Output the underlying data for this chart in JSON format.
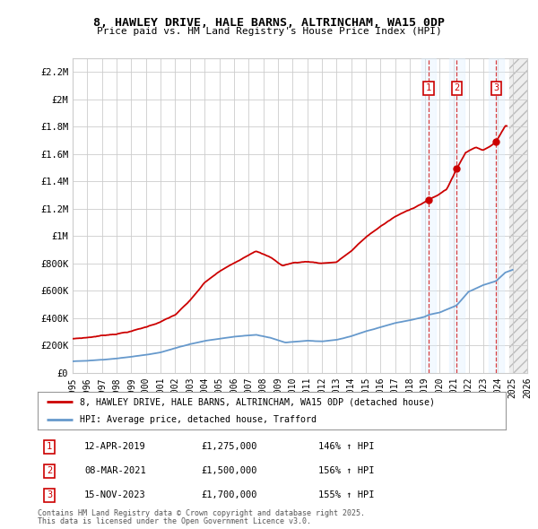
{
  "title": "8, HAWLEY DRIVE, HALE BARNS, ALTRINCHAM, WA15 0DP",
  "subtitle": "Price paid vs. HM Land Registry's House Price Index (HPI)",
  "xlim": [
    1995.0,
    2026.0
  ],
  "ylim": [
    0,
    2300000
  ],
  "yticks": [
    0,
    200000,
    400000,
    600000,
    800000,
    1000000,
    1200000,
    1400000,
    1600000,
    1800000,
    2000000,
    2200000
  ],
  "ytick_labels": [
    "£0",
    "£200K",
    "£400K",
    "£600K",
    "£800K",
    "£1M",
    "£1.2M",
    "£1.4M",
    "£1.6M",
    "£1.8M",
    "£2M",
    "£2.2M"
  ],
  "xticks": [
    1995,
    1996,
    1997,
    1998,
    1999,
    2000,
    2001,
    2002,
    2003,
    2004,
    2005,
    2006,
    2007,
    2008,
    2009,
    2010,
    2011,
    2012,
    2013,
    2014,
    2015,
    2016,
    2017,
    2018,
    2019,
    2020,
    2021,
    2022,
    2023,
    2024,
    2025,
    2026
  ],
  "transactions": [
    {
      "num": 1,
      "date": "12-APR-2019",
      "year": 2019.28,
      "price": 1275000,
      "pct": "146%",
      "dir": "↑"
    },
    {
      "num": 2,
      "date": "08-MAR-2021",
      "year": 2021.19,
      "price": 1500000,
      "pct": "156%",
      "dir": "↑"
    },
    {
      "num": 3,
      "date": "15-NOV-2023",
      "year": 2023.88,
      "price": 1700000,
      "pct": "155%",
      "dir": "↑"
    }
  ],
  "legend_line1": "8, HAWLEY DRIVE, HALE BARNS, ALTRINCHAM, WA15 0DP (detached house)",
  "legend_line2": "HPI: Average price, detached house, Trafford",
  "footer1": "Contains HM Land Registry data © Crown copyright and database right 2025.",
  "footer2": "This data is licensed under the Open Government Licence v3.0.",
  "red_color": "#cc0000",
  "blue_color": "#6699cc",
  "grid_color": "#cccccc",
  "bg_color": "#ffffff",
  "hatch_start": 2024.75
}
